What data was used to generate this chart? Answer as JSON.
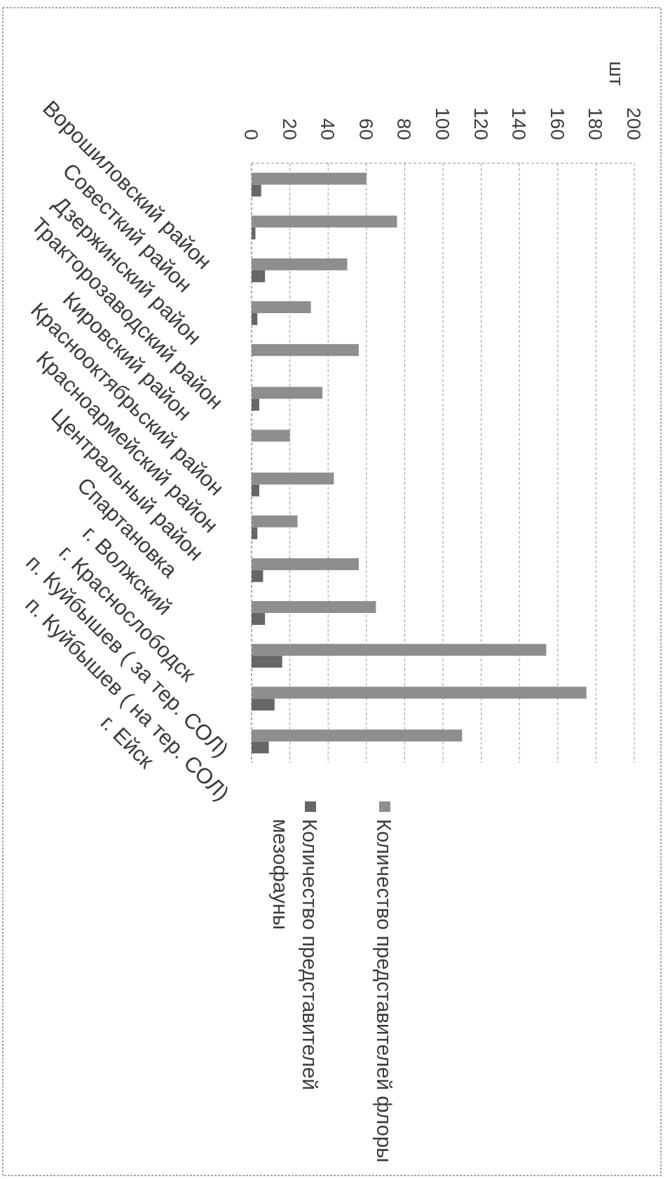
{
  "chart_data": {
    "type": "bar",
    "orientation": "horizontal",
    "x2label": "шт",
    "categories": [
      "Ворошиловский район",
      "Совесткий район",
      "Дзержинский район",
      "Тракторозаводский район",
      "Кировский район",
      "Краснооктябрьский район",
      "Красноармейский район",
      "Центральный район",
      "Спартановка",
      "г. Волжский",
      "г. Краснослободск",
      "п. Куйбышев ( за тер. СОЛ)",
      "п. Куйбышев ( на тер. СОЛ)",
      "г. Ейск"
    ],
    "series": [
      {
        "name": "Количество представителей флоры",
        "color": "#8e8e8e",
        "axis": "x2",
        "values": [
          60,
          76,
          50,
          31,
          56,
          37,
          20,
          43,
          24,
          56,
          65,
          154,
          175,
          110
        ]
      },
      {
        "name": "Количество представителей мезофауны",
        "color": "#666666",
        "axis": "x2",
        "values": [
          5,
          2,
          7,
          3,
          0,
          4,
          0,
          4,
          3,
          6,
          7,
          16,
          12,
          9
        ]
      }
    ],
    "x2lim": [
      0,
      200
    ],
    "x2ticks": [
      0,
      20,
      40,
      60,
      80,
      100,
      120,
      140,
      160,
      180,
      200
    ],
    "grid": "x",
    "legend": "bottom"
  }
}
